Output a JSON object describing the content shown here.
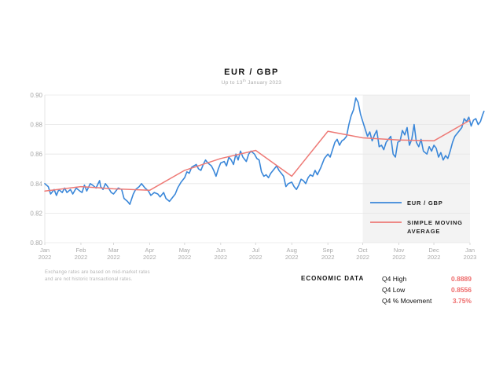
{
  "chart_data": {
    "type": "line",
    "title": "EUR / GBP",
    "subtitle_main": "Up to 13",
    "subtitle_sup": "th",
    "subtitle_rest": " January 2023",
    "x_ticks": [
      {
        "month": "Jan",
        "year": "2022",
        "date": "2022-01-01"
      },
      {
        "month": "Feb",
        "year": "2022",
        "date": "2022-02-01"
      },
      {
        "month": "Mar",
        "year": "2022",
        "date": "2022-03-01"
      },
      {
        "month": "Apr",
        "year": "2022",
        "date": "2022-04-01"
      },
      {
        "month": "May",
        "year": "2022",
        "date": "2022-05-01"
      },
      {
        "month": "Jun",
        "year": "2022",
        "date": "2022-06-01"
      },
      {
        "month": "Jul",
        "year": "2022",
        "date": "2022-07-01"
      },
      {
        "month": "Aug",
        "year": "2022",
        "date": "2022-08-01"
      },
      {
        "month": "Sep",
        "year": "2022",
        "date": "2022-09-01"
      },
      {
        "month": "Oct",
        "year": "2022",
        "date": "2022-10-01"
      },
      {
        "month": "Nov",
        "year": "2022",
        "date": "2022-11-01"
      },
      {
        "month": "Dec",
        "year": "2022",
        "date": "2022-12-01"
      },
      {
        "month": "Jan",
        "year": "2023",
        "date": "2023-01-01"
      }
    ],
    "y_ticks": [
      "0.80",
      "0.82",
      "0.84",
      "0.86",
      "0.88",
      "0.90"
    ],
    "ylim": [
      0.8,
      0.9
    ],
    "xlim": [
      "2022-01-01",
      "2023-01-01"
    ],
    "grid": "horizontal",
    "legend_position": "right",
    "highlight_region": {
      "from": "2022-10-01",
      "to": "2023-01-01",
      "color": "#f3f3f3"
    },
    "series": [
      {
        "name": "EUR / GBP",
        "color": "#3a87d9",
        "points": [
          [
            "2022-01-01",
            0.84
          ],
          [
            "2022-01-04",
            0.838
          ],
          [
            "2022-01-06",
            0.833
          ],
          [
            "2022-01-09",
            0.836
          ],
          [
            "2022-01-11",
            0.832
          ],
          [
            "2022-01-13",
            0.836
          ],
          [
            "2022-01-16",
            0.834
          ],
          [
            "2022-01-18",
            0.837
          ],
          [
            "2022-01-20",
            0.834
          ],
          [
            "2022-01-23",
            0.836
          ],
          [
            "2022-01-25",
            0.833
          ],
          [
            "2022-01-28",
            0.837
          ],
          [
            "2022-01-31",
            0.835
          ],
          [
            "2022-02-02",
            0.834
          ],
          [
            "2022-02-04",
            0.839
          ],
          [
            "2022-02-06",
            0.835
          ],
          [
            "2022-02-09",
            0.84
          ],
          [
            "2022-02-11",
            0.839
          ],
          [
            "2022-02-14",
            0.837
          ],
          [
            "2022-02-17",
            0.842
          ],
          [
            "2022-02-18",
            0.838
          ],
          [
            "2022-02-20",
            0.836
          ],
          [
            "2022-02-22",
            0.84
          ],
          [
            "2022-02-24",
            0.838
          ],
          [
            "2022-02-27",
            0.834
          ],
          [
            "2022-03-01",
            0.833
          ],
          [
            "2022-03-03",
            0.835
          ],
          [
            "2022-03-05",
            0.837
          ],
          [
            "2022-03-08",
            0.836
          ],
          [
            "2022-03-10",
            0.83
          ],
          [
            "2022-03-13",
            0.828
          ],
          [
            "2022-03-15",
            0.826
          ],
          [
            "2022-03-18",
            0.833
          ],
          [
            "2022-03-20",
            0.836
          ],
          [
            "2022-03-23",
            0.838
          ],
          [
            "2022-03-25",
            0.84
          ],
          [
            "2022-03-28",
            0.837
          ],
          [
            "2022-03-31",
            0.835
          ],
          [
            "2022-04-02",
            0.832
          ],
          [
            "2022-04-05",
            0.834
          ],
          [
            "2022-04-08",
            0.833
          ],
          [
            "2022-04-10",
            0.831
          ],
          [
            "2022-04-13",
            0.834
          ],
          [
            "2022-04-15",
            0.83
          ],
          [
            "2022-04-18",
            0.828
          ],
          [
            "2022-04-20",
            0.83
          ],
          [
            "2022-04-23",
            0.833
          ],
          [
            "2022-04-25",
            0.837
          ],
          [
            "2022-04-28",
            0.841
          ],
          [
            "2022-05-01",
            0.844
          ],
          [
            "2022-05-03",
            0.848
          ],
          [
            "2022-05-05",
            0.847
          ],
          [
            "2022-05-07",
            0.851
          ],
          [
            "2022-05-09",
            0.852
          ],
          [
            "2022-05-11",
            0.853
          ],
          [
            "2022-05-13",
            0.85
          ],
          [
            "2022-05-15",
            0.849
          ],
          [
            "2022-05-17",
            0.853
          ],
          [
            "2022-05-19",
            0.856
          ],
          [
            "2022-05-21",
            0.854
          ],
          [
            "2022-05-24",
            0.852
          ],
          [
            "2022-05-26",
            0.849
          ],
          [
            "2022-05-28",
            0.845
          ],
          [
            "2022-05-30",
            0.85
          ],
          [
            "2022-06-01",
            0.854
          ],
          [
            "2022-06-04",
            0.855
          ],
          [
            "2022-06-06",
            0.852
          ],
          [
            "2022-06-08",
            0.858
          ],
          [
            "2022-06-10",
            0.856
          ],
          [
            "2022-06-12",
            0.853
          ],
          [
            "2022-06-14",
            0.86
          ],
          [
            "2022-06-16",
            0.856
          ],
          [
            "2022-06-18",
            0.862
          ],
          [
            "2022-06-20",
            0.858
          ],
          [
            "2022-06-23",
            0.855
          ],
          [
            "2022-06-25",
            0.86
          ],
          [
            "2022-06-27",
            0.862
          ],
          [
            "2022-06-30",
            0.86
          ],
          [
            "2022-07-02",
            0.857
          ],
          [
            "2022-07-04",
            0.856
          ],
          [
            "2022-07-06",
            0.848
          ],
          [
            "2022-07-08",
            0.845
          ],
          [
            "2022-07-10",
            0.846
          ],
          [
            "2022-07-12",
            0.844
          ],
          [
            "2022-07-14",
            0.847
          ],
          [
            "2022-07-17",
            0.85
          ],
          [
            "2022-07-19",
            0.852
          ],
          [
            "2022-07-21",
            0.849
          ],
          [
            "2022-07-23",
            0.847
          ],
          [
            "2022-07-25",
            0.845
          ],
          [
            "2022-07-27",
            0.838
          ],
          [
            "2022-07-29",
            0.84
          ],
          [
            "2022-08-01",
            0.841
          ],
          [
            "2022-08-03",
            0.838
          ],
          [
            "2022-08-05",
            0.836
          ],
          [
            "2022-08-07",
            0.839
          ],
          [
            "2022-08-09",
            0.843
          ],
          [
            "2022-08-11",
            0.842
          ],
          [
            "2022-08-13",
            0.84
          ],
          [
            "2022-08-15",
            0.844
          ],
          [
            "2022-08-17",
            0.846
          ],
          [
            "2022-08-19",
            0.845
          ],
          [
            "2022-08-21",
            0.849
          ],
          [
            "2022-08-23",
            0.846
          ],
          [
            "2022-08-26",
            0.851
          ],
          [
            "2022-08-29",
            0.857
          ],
          [
            "2022-09-01",
            0.86
          ],
          [
            "2022-09-03",
            0.858
          ],
          [
            "2022-09-05",
            0.863
          ],
          [
            "2022-09-07",
            0.868
          ],
          [
            "2022-09-09",
            0.87
          ],
          [
            "2022-09-11",
            0.866
          ],
          [
            "2022-09-13",
            0.869
          ],
          [
            "2022-09-15",
            0.87
          ],
          [
            "2022-09-17",
            0.872
          ],
          [
            "2022-09-19",
            0.88
          ],
          [
            "2022-09-21",
            0.886
          ],
          [
            "2022-09-23",
            0.89
          ],
          [
            "2022-09-25",
            0.898
          ],
          [
            "2022-09-27",
            0.895
          ],
          [
            "2022-09-29",
            0.887
          ],
          [
            "2022-10-01",
            0.882
          ],
          [
            "2022-10-03",
            0.877
          ],
          [
            "2022-10-05",
            0.872
          ],
          [
            "2022-10-07",
            0.875
          ],
          [
            "2022-10-09",
            0.869
          ],
          [
            "2022-10-11",
            0.873
          ],
          [
            "2022-10-13",
            0.876
          ],
          [
            "2022-10-15",
            0.865
          ],
          [
            "2022-10-17",
            0.866
          ],
          [
            "2022-10-19",
            0.863
          ],
          [
            "2022-10-21",
            0.868
          ],
          [
            "2022-10-23",
            0.87
          ],
          [
            "2022-10-25",
            0.872
          ],
          [
            "2022-10-27",
            0.86
          ],
          [
            "2022-10-29",
            0.858
          ],
          [
            "2022-10-31",
            0.868
          ],
          [
            "2022-11-02",
            0.869
          ],
          [
            "2022-11-04",
            0.876
          ],
          [
            "2022-11-06",
            0.873
          ],
          [
            "2022-11-08",
            0.878
          ],
          [
            "2022-11-10",
            0.866
          ],
          [
            "2022-11-12",
            0.87
          ],
          [
            "2022-11-14",
            0.88
          ],
          [
            "2022-11-16",
            0.868
          ],
          [
            "2022-11-18",
            0.865
          ],
          [
            "2022-11-20",
            0.87
          ],
          [
            "2022-11-22",
            0.862
          ],
          [
            "2022-11-25",
            0.86
          ],
          [
            "2022-11-27",
            0.865
          ],
          [
            "2022-11-29",
            0.862
          ],
          [
            "2022-12-01",
            0.866
          ],
          [
            "2022-12-03",
            0.864
          ],
          [
            "2022-12-05",
            0.858
          ],
          [
            "2022-12-07",
            0.861
          ],
          [
            "2022-12-09",
            0.856
          ],
          [
            "2022-12-11",
            0.859
          ],
          [
            "2022-12-13",
            0.857
          ],
          [
            "2022-12-15",
            0.862
          ],
          [
            "2022-12-17",
            0.868
          ],
          [
            "2022-12-19",
            0.872
          ],
          [
            "2022-12-21",
            0.874
          ],
          [
            "2022-12-23",
            0.876
          ],
          [
            "2022-12-25",
            0.878
          ],
          [
            "2022-12-27",
            0.884
          ],
          [
            "2022-12-29",
            0.882
          ],
          [
            "2022-12-31",
            0.885
          ],
          [
            "2023-01-02",
            0.879
          ],
          [
            "2023-01-04",
            0.883
          ],
          [
            "2023-01-06",
            0.884
          ],
          [
            "2023-01-08",
            0.88
          ],
          [
            "2023-01-10",
            0.882
          ],
          [
            "2023-01-12",
            0.887
          ],
          [
            "2023-01-13",
            0.889
          ]
        ]
      },
      {
        "name": "SIMPLE MOVING AVERAGE",
        "color": "#ee7a76",
        "points": [
          [
            "2022-01-01",
            0.835
          ],
          [
            "2022-02-01",
            0.838
          ],
          [
            "2022-03-01",
            0.8365
          ],
          [
            "2022-04-01",
            0.8355
          ],
          [
            "2022-05-01",
            0.849
          ],
          [
            "2022-06-01",
            0.857
          ],
          [
            "2022-07-01",
            0.8625
          ],
          [
            "2022-08-01",
            0.845
          ],
          [
            "2022-09-01",
            0.8755
          ],
          [
            "2022-10-01",
            0.871
          ],
          [
            "2022-11-01",
            0.8695
          ],
          [
            "2022-12-01",
            0.869
          ],
          [
            "2023-01-01",
            0.883
          ]
        ]
      }
    ],
    "legend": [
      {
        "line1": "EUR / GBP",
        "line2": ""
      },
      {
        "line1": "SIMPLE MOVING",
        "line2": "AVERAGE"
      }
    ]
  },
  "note": {
    "line1": "Exchange rates are based on mid-market rates",
    "line2": "and are not historic transactional rates."
  },
  "economic_data": {
    "label": "ECONOMIC DATA",
    "rows": [
      {
        "name": "Q4 High",
        "value": "0.8889"
      },
      {
        "name": "Q4 Low",
        "value": "0.8556"
      },
      {
        "name": "Q4 % Movement",
        "value": "3.75%"
      }
    ]
  }
}
